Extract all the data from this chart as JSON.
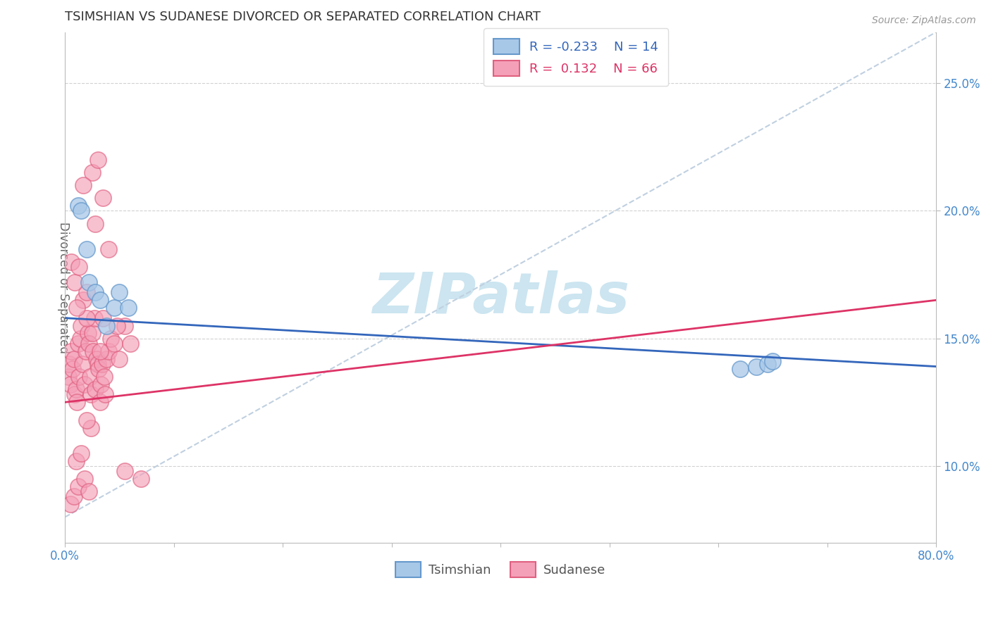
{
  "title": "TSIMSHIAN VS SUDANESE DIVORCED OR SEPARATED CORRELATION CHART",
  "source_text": "Source: ZipAtlas.com",
  "ylabel": "Divorced or Separated",
  "xlim": [
    0.0,
    80.0
  ],
  "ylim": [
    7.0,
    27.0
  ],
  "ytick_labels": [
    "10.0%",
    "15.0%",
    "20.0%",
    "25.0%"
  ],
  "ytick_values": [
    10.0,
    15.0,
    20.0,
    25.0
  ],
  "background_color": "#ffffff",
  "grid_color": "#cccccc",
  "title_color": "#333333",
  "axis_color": "#bbbbbb",
  "watermark_text": "ZIPatlas",
  "watermark_color": "#cce5f0",
  "tsimshian_color": "#a8c8e8",
  "sudanese_color": "#f4a0b8",
  "tsimshian_edge": "#6699cc",
  "sudanese_edge": "#e06080",
  "trend_tsimshian_color": "#3366bb",
  "trend_sudanese_color": "#dd3366",
  "dashed_line_color": "#c0d0e0",
  "tick_label_color": "#4488cc",
  "tsimshian_x": [
    1.2,
    1.5,
    2.2,
    2.8,
    3.2,
    4.5,
    5.0,
    5.8,
    62.0,
    63.5,
    64.5,
    65.0,
    2.0,
    3.8
  ],
  "tsimshian_y": [
    20.2,
    20.0,
    17.2,
    16.8,
    16.5,
    16.2,
    16.8,
    16.2,
    13.8,
    13.9,
    14.0,
    14.1,
    18.5,
    15.5
  ],
  "sudanese_x": [
    0.3,
    0.4,
    0.5,
    0.6,
    0.7,
    0.8,
    0.9,
    1.0,
    1.1,
    1.2,
    1.3,
    1.4,
    1.5,
    1.6,
    1.7,
    1.8,
    1.9,
    2.0,
    2.1,
    2.2,
    2.3,
    2.4,
    2.5,
    2.6,
    2.7,
    2.8,
    2.9,
    3.0,
    3.1,
    3.2,
    3.3,
    3.4,
    3.5,
    3.6,
    3.7,
    3.8,
    4.0,
    4.2,
    4.5,
    5.0,
    5.5,
    6.0,
    1.0,
    1.5,
    0.5,
    0.8,
    1.2,
    1.8,
    2.2,
    2.5,
    3.0,
    3.5,
    4.0,
    0.6,
    0.9,
    1.3,
    1.7,
    2.8,
    4.8,
    3.2,
    2.0,
    1.1,
    5.5,
    7.0,
    2.4,
    2.0
  ],
  "sudanese_y": [
    13.5,
    14.0,
    13.2,
    14.5,
    13.8,
    14.2,
    12.8,
    13.0,
    12.5,
    14.8,
    13.5,
    15.0,
    15.5,
    14.0,
    16.5,
    13.2,
    14.5,
    16.8,
    15.2,
    14.8,
    13.5,
    12.8,
    15.2,
    14.5,
    15.8,
    13.0,
    14.2,
    14.0,
    13.8,
    12.5,
    13.2,
    14.0,
    15.8,
    13.5,
    12.8,
    14.2,
    14.5,
    15.0,
    14.8,
    14.2,
    15.5,
    14.8,
    10.2,
    10.5,
    8.5,
    8.8,
    9.2,
    9.5,
    9.0,
    21.5,
    22.0,
    20.5,
    18.5,
    18.0,
    17.2,
    17.8,
    21.0,
    19.5,
    15.5,
    14.5,
    15.8,
    16.2,
    9.8,
    9.5,
    11.5,
    11.8
  ]
}
